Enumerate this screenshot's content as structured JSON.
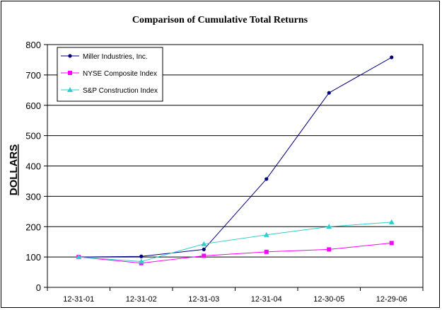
{
  "chart_data": {
    "type": "line",
    "title": "Comparison of Cumulative Total Returns",
    "xlabel": "",
    "ylabel": "DOLLARS",
    "categories": [
      "12-31-01",
      "12-31-02",
      "12-31-03",
      "12-31-04",
      "12-30-05",
      "12-29-06"
    ],
    "ylim": [
      0,
      800
    ],
    "yticks": [
      0,
      100,
      200,
      300,
      400,
      500,
      600,
      700,
      800
    ],
    "grid": true,
    "legend_position": "top-left",
    "series": [
      {
        "name": "Miller Industries, Inc.",
        "values": [
          100,
          102,
          125,
          357,
          641,
          758
        ],
        "color": "#000080",
        "marker": "diamond"
      },
      {
        "name": "NYSE Composite Index",
        "values": [
          100,
          80,
          104,
          117,
          125,
          146
        ],
        "color": "#ff00ff",
        "marker": "square"
      },
      {
        "name": "S&P Construction Index",
        "values": [
          100,
          85,
          143,
          173,
          200,
          215
        ],
        "color": "#33cccc",
        "marker": "triangle"
      }
    ]
  }
}
